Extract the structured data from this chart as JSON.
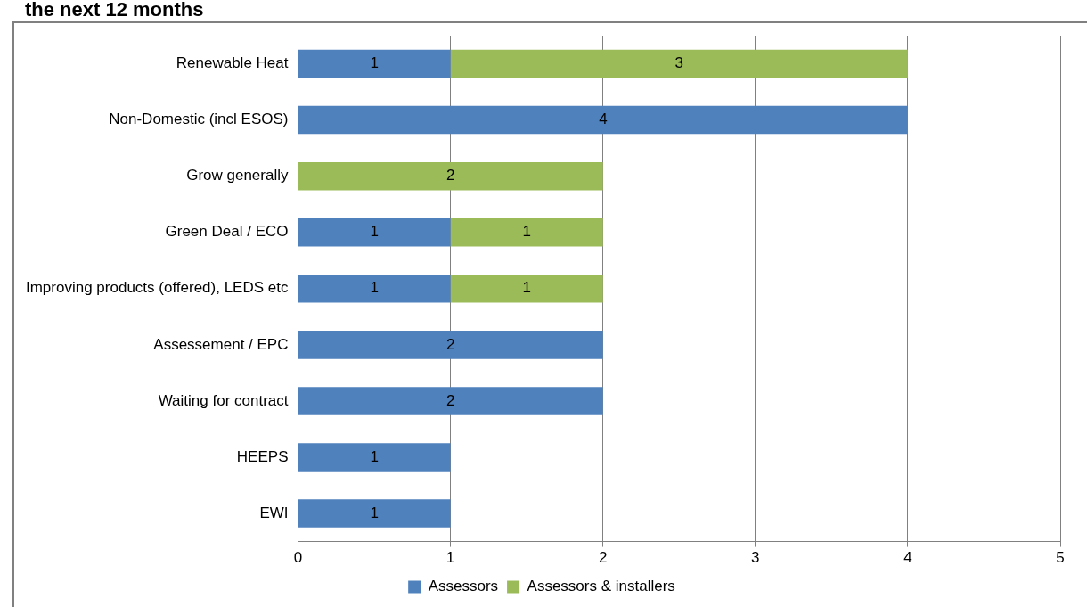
{
  "chart_data": {
    "type": "bar",
    "orientation": "horizontal",
    "stacked": true,
    "title": "the next 12 months",
    "categories": [
      "Renewable Heat",
      "Non-Domestic (incl ESOS)",
      "Grow generally",
      "Green Deal / ECO",
      "Improving products (offered), LEDS etc",
      "Assessement / EPC",
      "Waiting for contract",
      "HEEPS",
      "EWI"
    ],
    "series": [
      {
        "name": "Assessors",
        "color": "#4f81bd",
        "values": [
          1,
          4,
          null,
          1,
          1,
          2,
          2,
          1,
          1
        ]
      },
      {
        "name": "Assessors & installers",
        "color": "#9bbb59",
        "values": [
          3,
          null,
          2,
          1,
          1,
          null,
          null,
          null,
          null
        ]
      }
    ],
    "xlim": [
      0,
      5
    ],
    "xticks": [
      0,
      1,
      2,
      3,
      4,
      5
    ],
    "grid": "x",
    "legend": "bottom",
    "data_labels": true
  }
}
